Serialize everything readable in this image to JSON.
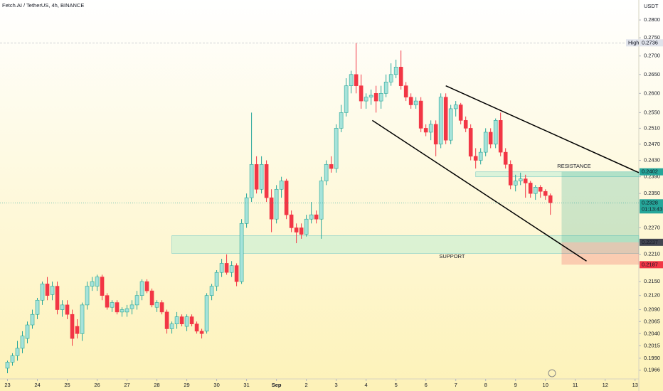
{
  "chart_data": {
    "type": "candlestick",
    "title": "Fetch.AI / TetherUS, 4h, BINANCE",
    "currency": "USDT",
    "log_scale": true,
    "colors": {
      "up": "#26a69a",
      "down": "#f23645"
    },
    "xlim": [
      -6,
      507
    ],
    "ylim": [
      0.1953,
      0.2857
    ],
    "xticks": [
      {
        "value": 0,
        "label": "23"
      },
      {
        "value": 24,
        "label": "24"
      },
      {
        "value": 48,
        "label": "25"
      },
      {
        "value": 72,
        "label": "26"
      },
      {
        "value": 96,
        "label": "27"
      },
      {
        "value": 120,
        "label": "28"
      },
      {
        "value": 144,
        "label": "29"
      },
      {
        "value": 168,
        "label": "30"
      },
      {
        "value": 192,
        "label": "31"
      },
      {
        "value": 216,
        "label": "Sep"
      },
      {
        "value": 240,
        "label": "2"
      },
      {
        "value": 264,
        "label": "3"
      },
      {
        "value": 288,
        "label": "4"
      },
      {
        "value": 312,
        "label": "5"
      },
      {
        "value": 336,
        "label": "6"
      },
      {
        "value": 360,
        "label": "7"
      },
      {
        "value": 384,
        "label": "8"
      },
      {
        "value": 408,
        "label": "9"
      },
      {
        "value": 432,
        "label": "10"
      },
      {
        "value": 456,
        "label": "11"
      },
      {
        "value": 480,
        "label": "12"
      },
      {
        "value": 504,
        "label": "13"
      }
    ],
    "yticks": [
      {
        "value": 0.28,
        "label": "0.2800"
      },
      {
        "value": 0.275,
        "label": "0.2750"
      },
      {
        "value": 0.27,
        "label": "0.2700"
      },
      {
        "value": 0.265,
        "label": "0.2650"
      },
      {
        "value": 0.26,
        "label": "0.2600"
      },
      {
        "value": 0.255,
        "label": "0.2550"
      },
      {
        "value": 0.251,
        "label": "0.2510"
      },
      {
        "value": 0.247,
        "label": "0.2470"
      },
      {
        "value": 0.243,
        "label": "0.2430"
      },
      {
        "value": 0.239,
        "label": "0.2390"
      },
      {
        "value": 0.235,
        "label": "0.2350"
      },
      {
        "value": 0.227,
        "label": "0.2270"
      },
      {
        "value": 0.221,
        "label": "0.2210"
      },
      {
        "value": 0.215,
        "label": "0.2150"
      },
      {
        "value": 0.212,
        "label": "0.2120"
      },
      {
        "value": 0.209,
        "label": "0.2090"
      },
      {
        "value": 0.2065,
        "label": "0.2065"
      },
      {
        "value": 0.204,
        "label": "0.2040"
      },
      {
        "value": 0.2015,
        "label": "0.2015"
      },
      {
        "value": 0.199,
        "label": "0.1990"
      },
      {
        "value": 0.1966,
        "label": "0.1966"
      }
    ],
    "x": [
      0,
      4,
      8,
      12,
      16,
      20,
      24,
      28,
      32,
      36,
      40,
      44,
      48,
      52,
      56,
      60,
      64,
      68,
      72,
      76,
      80,
      84,
      88,
      92,
      96,
      100,
      104,
      108,
      112,
      116,
      120,
      124,
      128,
      132,
      136,
      140,
      144,
      148,
      152,
      156,
      160,
      164,
      168,
      172,
      176,
      180,
      184,
      188,
      192,
      196,
      200,
      204,
      208,
      212,
      216,
      220,
      224,
      228,
      232,
      236,
      240,
      244,
      248,
      252,
      256,
      260,
      264,
      268,
      272,
      276,
      280,
      284,
      288,
      292,
      296,
      300,
      304,
      308,
      312,
      316,
      320,
      324,
      328,
      332,
      336,
      340,
      344,
      348,
      352,
      356,
      360,
      364,
      368,
      372,
      376,
      380,
      384,
      388,
      392,
      396,
      400,
      404,
      408,
      412,
      416,
      420,
      424,
      428,
      432,
      436
    ],
    "ohlc": [
      [
        0.197,
        0.1985,
        0.196,
        0.1982
      ],
      [
        0.1982,
        0.2,
        0.1975,
        0.1995
      ],
      [
        0.1995,
        0.2025,
        0.1985,
        0.201
      ],
      [
        0.201,
        0.2045,
        0.2,
        0.2035
      ],
      [
        0.203,
        0.2065,
        0.202,
        0.2058
      ],
      [
        0.2058,
        0.209,
        0.205,
        0.208
      ],
      [
        0.208,
        0.2115,
        0.207,
        0.211
      ],
      [
        0.211,
        0.215,
        0.21,
        0.2145
      ],
      [
        0.2145,
        0.216,
        0.211,
        0.212
      ],
      [
        0.2122,
        0.215,
        0.211,
        0.214
      ],
      [
        0.214,
        0.215,
        0.208,
        0.209
      ],
      [
        0.209,
        0.211,
        0.2075,
        0.21
      ],
      [
        0.21,
        0.211,
        0.207,
        0.208
      ],
      [
        0.208,
        0.209,
        0.2015,
        0.203
      ],
      [
        0.2055,
        0.207,
        0.203,
        0.204
      ],
      [
        0.204,
        0.2105,
        0.2025,
        0.21
      ],
      [
        0.21,
        0.215,
        0.209,
        0.214
      ],
      [
        0.214,
        0.216,
        0.213,
        0.215
      ],
      [
        0.214,
        0.2165,
        0.213,
        0.216
      ],
      [
        0.216,
        0.2165,
        0.211,
        0.212
      ],
      [
        0.212,
        0.2125,
        0.209,
        0.2095
      ],
      [
        0.2095,
        0.211,
        0.2085,
        0.2105
      ],
      [
        0.2105,
        0.211,
        0.208,
        0.2085
      ],
      [
        0.2085,
        0.2095,
        0.2075,
        0.209
      ],
      [
        0.2085,
        0.21,
        0.2075,
        0.2092
      ],
      [
        0.2092,
        0.211,
        0.208,
        0.21
      ],
      [
        0.21,
        0.213,
        0.209,
        0.212
      ],
      [
        0.212,
        0.2155,
        0.211,
        0.215
      ],
      [
        0.215,
        0.2155,
        0.2125,
        0.213
      ],
      [
        0.213,
        0.2135,
        0.2095,
        0.21
      ],
      [
        0.2095,
        0.211,
        0.2085,
        0.2105
      ],
      [
        0.2105,
        0.211,
        0.208,
        0.2085
      ],
      [
        0.2085,
        0.209,
        0.204,
        0.205
      ],
      [
        0.205,
        0.2065,
        0.204,
        0.206
      ],
      [
        0.206,
        0.2085,
        0.205,
        0.2075
      ],
      [
        0.2075,
        0.208,
        0.2055,
        0.206
      ],
      [
        0.2055,
        0.208,
        0.2045,
        0.2075
      ],
      [
        0.2075,
        0.208,
        0.2055,
        0.206
      ],
      [
        0.206,
        0.2065,
        0.204,
        0.2045
      ],
      [
        0.2045,
        0.205,
        0.203,
        0.204
      ],
      [
        0.2045,
        0.2125,
        0.204,
        0.212
      ],
      [
        0.212,
        0.2145,
        0.211,
        0.214
      ],
      [
        0.214,
        0.2175,
        0.213,
        0.217
      ],
      [
        0.217,
        0.22,
        0.216,
        0.219
      ],
      [
        0.219,
        0.221,
        0.2165,
        0.217
      ],
      [
        0.217,
        0.2195,
        0.216,
        0.2185
      ],
      [
        0.2185,
        0.219,
        0.214,
        0.215
      ],
      [
        0.215,
        0.229,
        0.2145,
        0.228
      ],
      [
        0.228,
        0.235,
        0.227,
        0.234
      ],
      [
        0.234,
        0.255,
        0.233,
        0.242
      ],
      [
        0.242,
        0.244,
        0.235,
        0.236
      ],
      [
        0.236,
        0.244,
        0.235,
        0.242
      ],
      [
        0.242,
        0.243,
        0.233,
        0.234
      ],
      [
        0.234,
        0.236,
        0.226,
        0.229
      ],
      [
        0.229,
        0.237,
        0.228,
        0.236
      ],
      [
        0.236,
        0.239,
        0.234,
        0.238
      ],
      [
        0.238,
        0.2385,
        0.229,
        0.23
      ],
      [
        0.23,
        0.231,
        0.226,
        0.227
      ],
      [
        0.227,
        0.228,
        0.2235,
        0.226
      ],
      [
        0.227,
        0.228,
        0.2245,
        0.2255
      ],
      [
        0.2255,
        0.23,
        0.225,
        0.229
      ],
      [
        0.229,
        0.233,
        0.228,
        0.23
      ],
      [
        0.23,
        0.231,
        0.228,
        0.229
      ],
      [
        0.229,
        0.239,
        0.2245,
        0.238
      ],
      [
        0.238,
        0.243,
        0.237,
        0.242
      ],
      [
        0.242,
        0.244,
        0.24,
        0.241
      ],
      [
        0.241,
        0.252,
        0.24,
        0.251
      ],
      [
        0.251,
        0.257,
        0.25,
        0.255
      ],
      [
        0.255,
        0.264,
        0.254,
        0.262
      ],
      [
        0.262,
        0.266,
        0.26,
        0.265
      ],
      [
        0.265,
        0.2736,
        0.26,
        0.262
      ],
      [
        0.262,
        0.265,
        0.256,
        0.258
      ],
      [
        0.258,
        0.26,
        0.256,
        0.259
      ],
      [
        0.259,
        0.261,
        0.257,
        0.2595
      ],
      [
        0.26,
        0.262,
        0.255,
        0.258
      ],
      [
        0.258,
        0.262,
        0.256,
        0.26
      ],
      [
        0.26,
        0.265,
        0.259,
        0.263
      ],
      [
        0.263,
        0.268,
        0.262,
        0.265
      ],
      [
        0.265,
        0.269,
        0.264,
        0.267
      ],
      [
        0.267,
        0.2715,
        0.261,
        0.262
      ],
      [
        0.262,
        0.263,
        0.258,
        0.259
      ],
      [
        0.259,
        0.26,
        0.256,
        0.257
      ],
      [
        0.257,
        0.259,
        0.256,
        0.258
      ],
      [
        0.258,
        0.259,
        0.25,
        0.251
      ],
      [
        0.251,
        0.252,
        0.249,
        0.25
      ],
      [
        0.25,
        0.253,
        0.248,
        0.252
      ],
      [
        0.252,
        0.253,
        0.244,
        0.247
      ],
      [
        0.247,
        0.26,
        0.246,
        0.259
      ],
      [
        0.259,
        0.26,
        0.247,
        0.248
      ],
      [
        0.248,
        0.257,
        0.247,
        0.256
      ],
      [
        0.256,
        0.258,
        0.254,
        0.257
      ],
      [
        0.257,
        0.2575,
        0.252,
        0.253
      ],
      [
        0.253,
        0.254,
        0.25,
        0.251
      ],
      [
        0.251,
        0.252,
        0.243,
        0.244
      ],
      [
        0.244,
        0.246,
        0.241,
        0.243
      ],
      [
        0.243,
        0.246,
        0.242,
        0.245
      ],
      [
        0.245,
        0.251,
        0.244,
        0.25
      ],
      [
        0.25,
        0.251,
        0.246,
        0.247
      ],
      [
        0.247,
        0.2535,
        0.246,
        0.253
      ],
      [
        0.253,
        0.255,
        0.244,
        0.245
      ],
      [
        0.245,
        0.246,
        0.241,
        0.242
      ],
      [
        0.242,
        0.243,
        0.236,
        0.237
      ],
      [
        0.237,
        0.2395,
        0.2355,
        0.238
      ],
      [
        0.238,
        0.24,
        0.237,
        0.2385
      ],
      [
        0.2385,
        0.2395,
        0.234,
        0.2375
      ],
      [
        0.2375,
        0.238,
        0.234,
        0.235
      ],
      [
        0.235,
        0.237,
        0.2335,
        0.2365
      ],
      [
        0.2365,
        0.237,
        0.234,
        0.2355
      ],
      [
        0.2355,
        0.236,
        0.2335,
        0.2345
      ],
      [
        0.2345,
        0.235,
        0.23,
        0.2328
      ]
    ],
    "price_labels": [
      {
        "value": 0.2736,
        "label": "0.2736",
        "caption": "High",
        "color": "#e0e3eb"
      },
      {
        "value": 0.2402,
        "label": "0.2402",
        "color": "#26a69a"
      },
      {
        "value": 0.2328,
        "label": "0.2328",
        "countdown": "01:13:43",
        "color": "#26a69a"
      },
      {
        "value": 0.2237,
        "label": "0.2237",
        "color": "#434651"
      },
      {
        "value": 0.2187,
        "label": "0.2187",
        "color": "#f23645"
      }
    ],
    "zones": [
      {
        "x": [
          376,
          507
        ],
        "range": [
          0.239,
          0.2402
        ],
        "label": "RESISTANCE",
        "label_x": 455,
        "label_y": 0.2415
      },
      {
        "x": [
          132,
          507
        ],
        "range": [
          0.2212,
          0.2252
        ],
        "label": "SUPPORT",
        "label_x": 357,
        "label_y": 0.2205
      }
    ],
    "trendlines": [
      {
        "x": [
          352,
          507
        ],
        "y": [
          0.262,
          0.24
        ]
      },
      {
        "x": [
          293,
          465
        ],
        "y": [
          0.253,
          0.2195
        ]
      }
    ],
    "position": {
      "x": [
        445,
        507
      ],
      "target": 0.2402,
      "entry": 0.2237,
      "stop": 0.2187
    }
  }
}
